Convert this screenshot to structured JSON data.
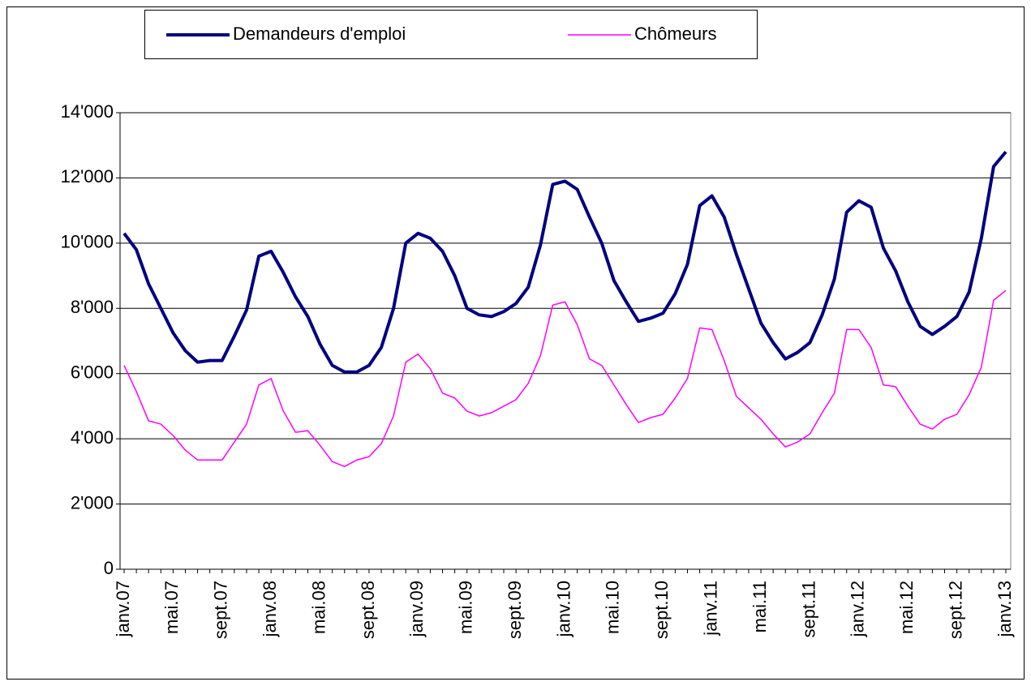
{
  "chart_data": {
    "type": "line",
    "categories": [
      "janv.07",
      null,
      null,
      null,
      "mai.07",
      null,
      null,
      null,
      "sept.07",
      null,
      null,
      null,
      "janv.08",
      null,
      null,
      null,
      "mai.08",
      null,
      null,
      null,
      "sept.08",
      null,
      null,
      null,
      "janv.09",
      null,
      null,
      null,
      "mai.09",
      null,
      null,
      null,
      "sept.09",
      null,
      null,
      null,
      "janv.10",
      null,
      null,
      null,
      "mai.10",
      null,
      null,
      null,
      "sept.10",
      null,
      null,
      null,
      "janv.11",
      null,
      null,
      null,
      "mai.11",
      null,
      null,
      null,
      "sept.11",
      null,
      null,
      null,
      "janv.12",
      null,
      null,
      null,
      "mai.12",
      null,
      null,
      null,
      "sept.12",
      null,
      null,
      null,
      "janv.13"
    ],
    "series": [
      {
        "name": "Demandeurs d'emploi",
        "color": "#000080",
        "values": [
          10300,
          9800,
          8750,
          8000,
          7250,
          6700,
          6350,
          6400,
          6400,
          7150,
          7950,
          9600,
          9750,
          9100,
          8350,
          7750,
          6900,
          6250,
          6050,
          6050,
          6250,
          6800,
          8000,
          10000,
          10300,
          10150,
          9750,
          9000,
          8000,
          7800,
          7750,
          7900,
          8150,
          8650,
          9950,
          11800,
          11900,
          11650,
          10800,
          10000,
          8850,
          8200,
          7600,
          7700,
          7850,
          8450,
          9350,
          11150,
          11450,
          10800,
          9650,
          8600,
          7550,
          6950,
          6450,
          6650,
          6950,
          7800,
          8900,
          10950,
          11300,
          11100,
          9850,
          9150,
          8200,
          7450,
          7200,
          7450,
          7750,
          8500,
          10150,
          12350,
          12800
        ]
      },
      {
        "name": "Chômeurs",
        "color": "#ff00ff",
        "values": [
          6250,
          5450,
          4550,
          4450,
          4100,
          3650,
          3350,
          3350,
          3350,
          3900,
          4450,
          5650,
          5850,
          4850,
          4200,
          4250,
          3800,
          3300,
          3150,
          3350,
          3450,
          3850,
          4700,
          6350,
          6600,
          6150,
          5400,
          5250,
          4850,
          4700,
          4800,
          5000,
          5200,
          5700,
          6550,
          8100,
          8200,
          7500,
          6450,
          6250,
          5650,
          5050,
          4500,
          4650,
          4750,
          5250,
          5850,
          7400,
          7350,
          6400,
          5300,
          4950,
          4600,
          4150,
          3750,
          3900,
          4150,
          4800,
          5400,
          7350,
          7350,
          6800,
          5650,
          5600,
          5000,
          4450,
          4300,
          4600,
          4750,
          5350,
          6200,
          8250,
          8550
        ]
      }
    ],
    "ylim": [
      0,
      14000
    ],
    "yticks": [
      0,
      {
        "value": 2000,
        "label": "2'000"
      },
      {
        "value": 4000,
        "label": "4'000"
      },
      {
        "value": 6000,
        "label": "6'000"
      },
      {
        "value": 8000,
        "label": "8'000"
      },
      {
        "value": 10000,
        "label": "10'000"
      },
      {
        "value": 12000,
        "label": "12'000"
      },
      {
        "value": 14000,
        "label": "14'000"
      }
    ],
    "grid": true
  }
}
